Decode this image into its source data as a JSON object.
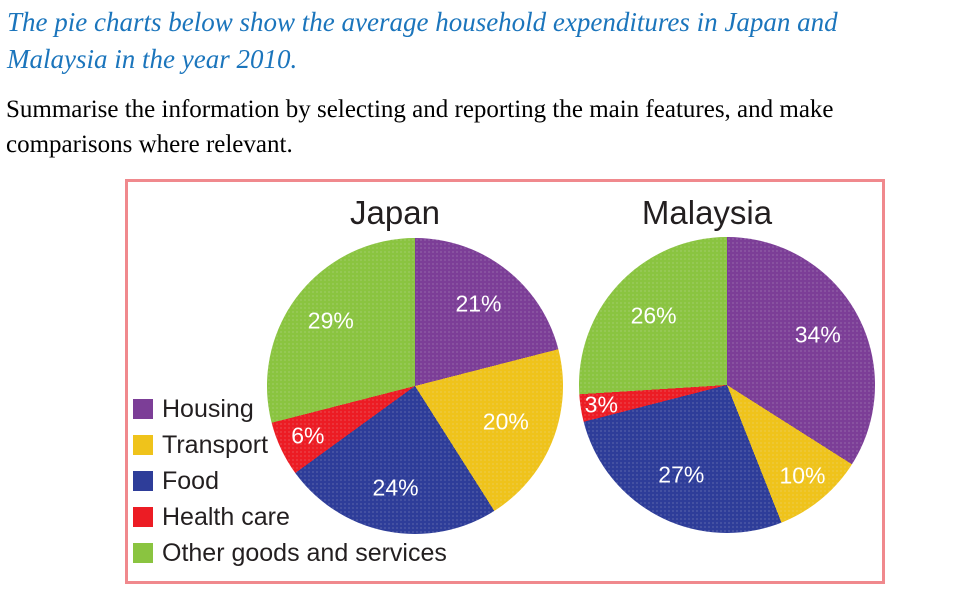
{
  "task": {
    "prompt": {
      "line1": "The pie charts below show the average household expenditures in Japan and",
      "line2": "Malaysia in the year 2010."
    },
    "instruction": {
      "line1": "Summarise the information by selecting and reporting the main features, and make",
      "line2": "comparisons where relevant."
    }
  },
  "figure": {
    "border_color": "#F0898D",
    "background": "#FFFFFF"
  },
  "palette": {
    "housing": "#7C3E97",
    "transport": "#EFC31B",
    "food": "#2E3D99",
    "health_care": "#EC1C24",
    "other_goods_and_services": "#8AC440",
    "prompt_text": "#1B75BC",
    "body_text": "#000000",
    "chart_title_text": "#231F20",
    "pie_label_text": "#FFFFFF",
    "frame_border": "#F0898D"
  },
  "chart_data": [
    {
      "type": "pie",
      "title": "Japan",
      "unit": "%",
      "start_angle_deg": 0,
      "direction": "clockwise",
      "categories": [
        "Housing",
        "Transport",
        "Food",
        "Health care",
        "Other goods and services"
      ],
      "values": [
        21,
        20,
        24,
        6,
        29
      ],
      "slices": [
        {
          "label": "Housing",
          "value": 21,
          "display": "21%",
          "color": "#7C3E97",
          "labelR": 0.7
        },
        {
          "label": "Transport",
          "value": 20,
          "display": "20%",
          "color": "#EFC31B",
          "labelR": 0.66
        },
        {
          "label": "Food",
          "value": 24,
          "display": "24%",
          "color": "#2E3D99",
          "labelR": 0.7
        },
        {
          "label": "Health care",
          "value": 6,
          "display": "6%",
          "color": "#EC1C24",
          "labelR": 0.8
        },
        {
          "label": "Other goods and services",
          "value": 29,
          "display": "29%",
          "color": "#8AC440",
          "labelR": 0.72
        }
      ]
    },
    {
      "type": "pie",
      "title": "Malaysia",
      "unit": "%",
      "start_angle_deg": 0,
      "direction": "clockwise",
      "categories": [
        "Housing",
        "Transport",
        "Food",
        "Health care",
        "Other goods and services"
      ],
      "values": [
        34,
        10,
        27,
        3,
        26
      ],
      "slices": [
        {
          "label": "Housing",
          "value": 34,
          "display": "34%",
          "color": "#7C3E97",
          "labelR": 0.7
        },
        {
          "label": "Transport",
          "value": 10,
          "display": "10%",
          "color": "#EFC31B",
          "labelR": 0.8
        },
        {
          "label": "Food",
          "value": 27,
          "display": "27%",
          "color": "#2E3D99",
          "labelR": 0.68
        },
        {
          "label": "Health care",
          "value": 3,
          "display": "3%",
          "color": "#EC1C24",
          "labelR": 0.86
        },
        {
          "label": "Other goods and services",
          "value": 26,
          "display": "26%",
          "color": "#8AC440",
          "labelR": 0.68
        }
      ]
    }
  ],
  "legend": {
    "position": "bottom-left",
    "items": [
      {
        "label": "Housing",
        "color": "#7C3E97"
      },
      {
        "label": "Transport",
        "color": "#EFC31B"
      },
      {
        "label": "Food",
        "color": "#2E3D99"
      },
      {
        "label": "Health care",
        "color": "#EC1C24"
      },
      {
        "label": "Other goods and services",
        "color": "#8AC440"
      }
    ]
  }
}
